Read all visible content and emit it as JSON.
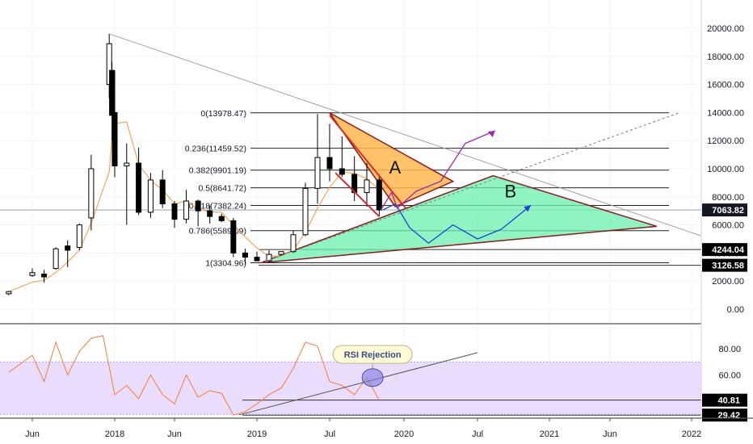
{
  "chart_data": [
    {
      "type": "candlestick",
      "title": "",
      "y_scale": "linear",
      "ylim": [
        -1000,
        21500
      ],
      "y_ticks": [
        0,
        2000,
        4000,
        6000,
        8000,
        10000,
        12000,
        14000,
        16000,
        18000,
        20000
      ],
      "y_tick_labels": [
        "0.00",
        "2000.00",
        "4000.00",
        "6000.00",
        "8000.00",
        "10000.00",
        "12000.00",
        "14000.00",
        "16000.00",
        "18000.00",
        "20000.00"
      ],
      "x_tick_labels": [
        "Jun",
        "2018",
        "Jun",
        "2019",
        "Jul",
        "2020",
        "Jul",
        "2021",
        "Jun",
        "2022"
      ],
      "x_tick_dates": [
        "2017-06",
        "2018-01",
        "2018-06",
        "2019-01",
        "2019-07",
        "2020-01",
        "2020-07",
        "2021-01",
        "2021-06",
        "2022-01"
      ],
      "price_tags": [
        {
          "text": "7063.82",
          "value": 7063.82,
          "style": "current"
        },
        {
          "text": "4244.04",
          "value": 4244.04,
          "style": "level"
        },
        {
          "text": "3126.58",
          "value": 3126.58,
          "style": "level"
        }
      ],
      "fib_levels": [
        {
          "ratio": "0",
          "price": "13978.47",
          "label": "0(13978.47)",
          "value": 13978.47
        },
        {
          "ratio": "0.236",
          "price": "11459.52",
          "label": "0.236(11459.52)",
          "value": 11459.52
        },
        {
          "ratio": "0.382",
          "price": "9901.19",
          "label": "0.382(9901.19)",
          "value": 9901.19
        },
        {
          "ratio": "0.5",
          "price": "8641.72",
          "label": "0.5(8641.72)",
          "value": 8641.72
        },
        {
          "ratio": "0.618",
          "price": "7382.24",
          "label": "0.618(7382.24)",
          "value": 7382.24
        },
        {
          "ratio": "0.786",
          "price": "5589.09",
          "label": "0.786(5589.09)",
          "value": 5589.09
        },
        {
          "ratio": "1",
          "price": "3304.96",
          "label": "1(3304.96)",
          "value": 3304.96
        }
      ],
      "annotations": [
        {
          "text": "A",
          "type": "triangle",
          "color": "#ffb74d"
        },
        {
          "text": "B",
          "type": "triangle",
          "color": "#69f0ae"
        }
      ],
      "candles_approx": [
        {
          "date": "2017-04",
          "open": 1100,
          "high": 1300,
          "low": 1000,
          "close": 1250
        },
        {
          "date": "2017-06",
          "open": 2400,
          "high": 2900,
          "low": 2300,
          "close": 2600
        },
        {
          "date": "2017-07",
          "open": 2500,
          "high": 2800,
          "low": 1900,
          "close": 2300
        },
        {
          "date": "2017-08",
          "open": 2900,
          "high": 4400,
          "low": 2800,
          "close": 4300
        },
        {
          "date": "2017-09",
          "open": 4500,
          "high": 4900,
          "low": 3000,
          "close": 4200
        },
        {
          "date": "2017-10",
          "open": 4400,
          "high": 6100,
          "low": 4200,
          "close": 6000
        },
        {
          "date": "2017-11",
          "open": 6500,
          "high": 11000,
          "low": 5600,
          "close": 10000
        },
        {
          "date": "2017-12-17",
          "open": 16000,
          "high": 19600,
          "low": 15000,
          "close": 18900
        },
        {
          "date": "2017-12-24",
          "open": 17000,
          "high": 17600,
          "low": 12000,
          "close": 13800
        },
        {
          "date": "2018-01",
          "open": 14000,
          "high": 17000,
          "low": 9400,
          "close": 10200
        },
        {
          "date": "2018-02",
          "open": 10200,
          "high": 11800,
          "low": 6000,
          "close": 10400
        },
        {
          "date": "2018-03",
          "open": 10400,
          "high": 11500,
          "low": 6700,
          "close": 6900
        },
        {
          "date": "2018-04",
          "open": 6900,
          "high": 9700,
          "low": 6500,
          "close": 9200
        },
        {
          "date": "2018-05",
          "open": 9200,
          "high": 9900,
          "low": 7200,
          "close": 7500
        },
        {
          "date": "2018-06",
          "open": 7500,
          "high": 7700,
          "low": 5800,
          "close": 6400
        },
        {
          "date": "2018-07",
          "open": 6400,
          "high": 8500,
          "low": 6100,
          "close": 7700
        },
        {
          "date": "2018-08",
          "open": 7700,
          "high": 7800,
          "low": 5900,
          "close": 7000
        },
        {
          "date": "2018-09",
          "open": 7000,
          "high": 7400,
          "low": 6100,
          "close": 6600
        },
        {
          "date": "2018-10",
          "open": 6600,
          "high": 6800,
          "low": 6200,
          "close": 6300
        },
        {
          "date": "2018-11",
          "open": 6300,
          "high": 6500,
          "low": 3700,
          "close": 4000
        },
        {
          "date": "2018-12",
          "open": 4000,
          "high": 4300,
          "low": 3200,
          "close": 3700
        },
        {
          "date": "2019-01",
          "open": 3700,
          "high": 4100,
          "low": 3400,
          "close": 3450
        },
        {
          "date": "2019-02",
          "open": 3450,
          "high": 4200,
          "low": 3350,
          "close": 3900
        },
        {
          "date": "2019-03",
          "open": 3900,
          "high": 4100,
          "low": 3800,
          "close": 4100
        },
        {
          "date": "2019-04",
          "open": 4100,
          "high": 5600,
          "low": 4000,
          "close": 5300
        },
        {
          "date": "2019-05",
          "open": 5300,
          "high": 9000,
          "low": 5200,
          "close": 8600
        },
        {
          "date": "2019-06",
          "open": 8600,
          "high": 13900,
          "low": 7500,
          "close": 10800
        },
        {
          "date": "2019-07",
          "open": 10800,
          "high": 13200,
          "low": 9100,
          "close": 10000
        },
        {
          "date": "2019-08",
          "open": 10000,
          "high": 12300,
          "low": 9400,
          "close": 9600
        },
        {
          "date": "2019-09",
          "open": 9600,
          "high": 10900,
          "low": 7700,
          "close": 8300
        },
        {
          "date": "2019-10",
          "open": 8300,
          "high": 10400,
          "low": 7300,
          "close": 9200
        },
        {
          "date": "2019-11",
          "open": 9200,
          "high": 9500,
          "low": 6600,
          "close": 7063.82
        }
      ]
    },
    {
      "type": "line",
      "title": "",
      "series_label": "RSI",
      "ylim": [
        25,
        95
      ],
      "y_ticks": [
        40,
        60,
        80
      ],
      "y_tick_labels": [
        "40.00",
        "60.00",
        "80.00"
      ],
      "band": [
        30,
        70
      ],
      "price_tags": [
        {
          "text": "40.81",
          "value": 40.81
        },
        {
          "text": "29.42",
          "value": 29.42
        }
      ],
      "callout": "RSI Rejection",
      "values_approx": [
        {
          "date": "2017-04",
          "value": 62
        },
        {
          "date": "2017-06",
          "value": 75
        },
        {
          "date": "2017-07",
          "value": 55
        },
        {
          "date": "2017-08",
          "value": 85
        },
        {
          "date": "2017-09",
          "value": 60
        },
        {
          "date": "2017-10",
          "value": 78
        },
        {
          "date": "2017-11",
          "value": 88
        },
        {
          "date": "2017-12",
          "value": 90
        },
        {
          "date": "2018-01",
          "value": 45
        },
        {
          "date": "2018-02",
          "value": 52
        },
        {
          "date": "2018-03",
          "value": 42
        },
        {
          "date": "2018-04",
          "value": 60
        },
        {
          "date": "2018-05",
          "value": 45
        },
        {
          "date": "2018-06",
          "value": 38
        },
        {
          "date": "2018-07",
          "value": 60
        },
        {
          "date": "2018-08",
          "value": 43
        },
        {
          "date": "2018-09",
          "value": 48
        },
        {
          "date": "2018-10",
          "value": 46
        },
        {
          "date": "2018-11",
          "value": 29.5
        },
        {
          "date": "2018-12",
          "value": 32
        },
        {
          "date": "2019-01",
          "value": 38
        },
        {
          "date": "2019-02",
          "value": 45
        },
        {
          "date": "2019-03",
          "value": 50
        },
        {
          "date": "2019-04",
          "value": 65
        },
        {
          "date": "2019-05",
          "value": 85
        },
        {
          "date": "2019-06",
          "value": 82
        },
        {
          "date": "2019-07",
          "value": 55
        },
        {
          "date": "2019-08",
          "value": 52
        },
        {
          "date": "2019-09",
          "value": 45
        },
        {
          "date": "2019-10",
          "value": 58
        },
        {
          "date": "2019-11",
          "value": 40.81
        }
      ]
    }
  ],
  "colors": {
    "bull": "#ffffff",
    "bear": "#000000",
    "ma": "#f7a35c",
    "rsi": "#f57c3b",
    "rsi_band": "#e9ddfb",
    "triangle_a": "#ffb74d",
    "triangle_b": "#69f0ae",
    "triangle_edge": "#8b1a1a",
    "channel": "#d32f2f",
    "bull_path": "#9c27b0",
    "bear_path": "#1e3fd8",
    "callout_bg": "#fffbd6",
    "callout_circle": "#7e7ce0",
    "current_tag": "#131722"
  }
}
